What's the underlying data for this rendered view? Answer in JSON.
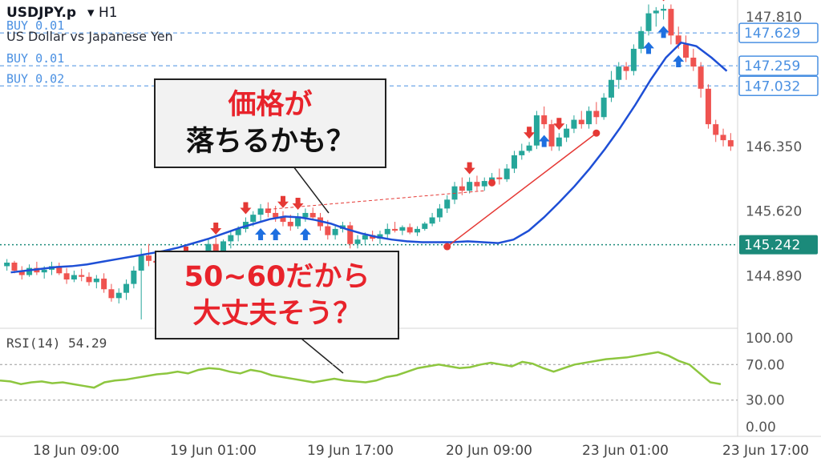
{
  "header": {
    "symbol": "USDJPY.p",
    "timeframe": "H1",
    "description": "US Dollar vs Japanese Yen"
  },
  "callouts": [
    {
      "line1": "価格が",
      "line2": "落ちるかも？"
    },
    {
      "line1": "50~60だから",
      "line2": "大丈夫そう？"
    }
  ],
  "colors": {
    "up": "#26a69a",
    "down": "#ef5350",
    "ma": "#1e4fd6",
    "rsi": "#8dc63f",
    "order": "#4a90e2",
    "trend": "#e53935",
    "bid": "#1b8a7a"
  },
  "chart_data": {
    "type": "candlestick",
    "x_ticks": [
      "18 Jun 09:00",
      "19 Jun 01:00",
      "19 Jun 17:00",
      "20 Jun 09:00",
      "23 Jun 01:00",
      "23 Jun 17:00"
    ],
    "price_ticks": [
      "147.810",
      "146.350",
      "145.620",
      "144.890"
    ],
    "ylim": [
      144.3,
      148.0
    ],
    "order_lines": [
      {
        "label": "BUY 0.01",
        "price": "147.629"
      },
      {
        "label": "BUY 0.01",
        "price": "147.259"
      },
      {
        "label": "BUY 0.02",
        "price": "147.032"
      }
    ],
    "current_price": "145.242",
    "candles": [
      [
        145.0,
        145.08,
        144.95,
        145.04
      ],
      [
        145.04,
        145.06,
        144.92,
        144.95
      ],
      [
        144.95,
        145.0,
        144.85,
        144.9
      ],
      [
        144.9,
        145.02,
        144.88,
        144.98
      ],
      [
        144.98,
        145.05,
        144.9,
        144.93
      ],
      [
        144.93,
        145.0,
        144.86,
        144.96
      ],
      [
        144.96,
        145.05,
        144.9,
        145.0
      ],
      [
        145.0,
        145.04,
        144.9,
        144.92
      ],
      [
        144.92,
        144.98,
        144.8,
        144.85
      ],
      [
        144.85,
        144.95,
        144.82,
        144.9
      ],
      [
        144.9,
        144.97,
        144.83,
        144.88
      ],
      [
        144.88,
        144.93,
        144.78,
        144.82
      ],
      [
        144.82,
        144.9,
        144.75,
        144.86
      ],
      [
        144.86,
        144.92,
        144.7,
        144.74
      ],
      [
        144.74,
        144.8,
        144.6,
        144.64
      ],
      [
        144.64,
        144.75,
        144.58,
        144.7
      ],
      [
        144.7,
        144.85,
        144.62,
        144.8
      ],
      [
        144.8,
        145.0,
        144.75,
        144.95
      ],
      [
        144.95,
        145.2,
        144.4,
        145.12
      ],
      [
        145.12,
        145.25,
        145.0,
        145.06
      ],
      [
        145.06,
        145.15,
        144.95,
        145.04
      ],
      [
        145.04,
        145.12,
        144.96,
        145.08
      ],
      [
        145.08,
        145.15,
        145.0,
        145.05
      ],
      [
        145.05,
        145.1,
        144.9,
        144.95
      ],
      [
        144.95,
        145.05,
        144.88,
        145.0
      ],
      [
        145.0,
        145.1,
        144.95,
        145.05
      ],
      [
        145.05,
        145.15,
        145.0,
        145.12
      ],
      [
        145.12,
        145.3,
        145.08,
        145.25
      ],
      [
        145.25,
        145.32,
        145.1,
        145.15
      ],
      [
        145.15,
        145.3,
        145.12,
        145.28
      ],
      [
        145.28,
        145.4,
        145.2,
        145.35
      ],
      [
        145.35,
        145.45,
        145.28,
        145.42
      ],
      [
        145.42,
        145.55,
        145.38,
        145.5
      ],
      [
        145.5,
        145.62,
        145.45,
        145.58
      ],
      [
        145.58,
        145.7,
        145.5,
        145.65
      ],
      [
        145.65,
        145.72,
        145.55,
        145.6
      ],
      [
        145.6,
        145.68,
        145.5,
        145.55
      ],
      [
        145.55,
        145.62,
        145.45,
        145.5
      ],
      [
        145.5,
        145.58,
        145.4,
        145.45
      ],
      [
        145.45,
        145.6,
        145.42,
        145.55
      ],
      [
        145.55,
        145.65,
        145.5,
        145.6
      ],
      [
        145.6,
        145.66,
        145.52,
        145.55
      ],
      [
        145.55,
        145.6,
        145.4,
        145.45
      ],
      [
        145.45,
        145.52,
        145.3,
        145.35
      ],
      [
        145.35,
        145.45,
        145.3,
        145.42
      ],
      [
        145.42,
        145.5,
        145.38,
        145.46
      ],
      [
        145.46,
        145.5,
        145.2,
        145.25
      ],
      [
        145.25,
        145.35,
        145.2,
        145.3
      ],
      [
        145.3,
        145.38,
        145.25,
        145.35
      ],
      [
        145.35,
        145.4,
        145.28,
        145.31
      ],
      [
        145.31,
        145.4,
        145.25,
        145.36
      ],
      [
        145.36,
        145.48,
        145.32,
        145.42
      ],
      [
        145.42,
        145.5,
        145.38,
        145.4
      ],
      [
        145.4,
        145.46,
        145.35,
        145.44
      ],
      [
        145.44,
        145.48,
        145.36,
        145.38
      ],
      [
        145.38,
        145.45,
        145.34,
        145.42
      ],
      [
        145.42,
        145.5,
        145.4,
        145.48
      ],
      [
        145.48,
        145.6,
        145.45,
        145.55
      ],
      [
        145.55,
        145.7,
        145.5,
        145.65
      ],
      [
        145.65,
        145.8,
        145.6,
        145.75
      ],
      [
        145.75,
        145.95,
        145.7,
        145.9
      ],
      [
        145.9,
        146.0,
        145.8,
        145.85
      ],
      [
        145.85,
        146.0,
        145.82,
        145.95
      ],
      [
        145.95,
        146.02,
        145.85,
        145.9
      ],
      [
        145.9,
        146.0,
        145.85,
        145.96
      ],
      [
        145.96,
        146.05,
        145.9,
        146.0
      ],
      [
        146.0,
        146.1,
        145.92,
        145.98
      ],
      [
        145.98,
        146.15,
        145.95,
        146.1
      ],
      [
        146.1,
        146.3,
        146.05,
        146.25
      ],
      [
        146.25,
        146.38,
        146.2,
        146.3
      ],
      [
        146.3,
        146.4,
        146.28,
        146.36
      ],
      [
        146.36,
        146.75,
        146.32,
        146.7
      ],
      [
        146.7,
        146.8,
        146.55,
        146.6
      ],
      [
        146.6,
        146.65,
        146.3,
        146.35
      ],
      [
        146.35,
        146.5,
        146.3,
        146.45
      ],
      [
        146.45,
        146.6,
        146.4,
        146.55
      ],
      [
        146.55,
        146.7,
        146.5,
        146.65
      ],
      [
        146.65,
        146.75,
        146.55,
        146.6
      ],
      [
        146.6,
        146.8,
        146.55,
        146.75
      ],
      [
        146.75,
        146.85,
        146.6,
        146.68
      ],
      [
        146.68,
        146.95,
        146.65,
        146.9
      ],
      [
        146.9,
        147.2,
        146.85,
        147.1
      ],
      [
        147.1,
        147.3,
        147.0,
        147.25
      ],
      [
        147.25,
        147.3,
        147.1,
        147.2
      ],
      [
        147.2,
        147.5,
        147.15,
        147.45
      ],
      [
        147.45,
        147.7,
        147.4,
        147.65
      ],
      [
        147.65,
        147.95,
        147.6,
        147.85
      ],
      [
        147.85,
        147.92,
        147.7,
        147.88
      ],
      [
        147.88,
        147.95,
        147.78,
        147.9
      ],
      [
        147.9,
        147.95,
        147.5,
        147.6
      ],
      [
        147.6,
        147.7,
        147.45,
        147.5
      ],
      [
        147.5,
        147.6,
        147.3,
        147.35
      ],
      [
        147.35,
        147.45,
        147.2,
        147.25
      ],
      [
        147.25,
        147.3,
        146.9,
        147.0
      ],
      [
        147.0,
        147.05,
        146.55,
        146.6
      ],
      [
        146.6,
        146.65,
        146.4,
        146.48
      ],
      [
        146.48,
        146.55,
        146.35,
        146.42
      ],
      [
        146.42,
        146.5,
        146.3,
        146.35
      ]
    ],
    "ma": [
      144.93,
      144.95,
      144.97,
      144.99,
      145.0,
      145.02,
      145.05,
      145.08,
      145.11,
      145.14,
      145.17,
      145.21,
      145.26,
      145.31,
      145.37,
      145.43,
      145.48,
      145.53,
      145.56,
      145.55,
      145.52,
      145.48,
      145.42,
      145.37,
      145.33,
      145.3,
      145.28,
      145.27,
      145.27,
      145.27,
      145.28,
      145.27,
      145.26,
      145.3,
      145.4,
      145.55,
      145.72,
      145.9,
      146.1,
      146.32,
      146.56,
      146.82,
      147.1,
      147.35,
      147.52,
      147.48,
      147.35,
      147.2
    ],
    "ma_x_start": 0,
    "trendline": [
      [
        59,
        145.22
      ],
      [
        79,
        146.5
      ]
    ],
    "trendline_ext": [
      [
        35,
        145.64
      ],
      [
        64,
        145.85
      ]
    ],
    "rsi": {
      "label": "RSI(14)",
      "value": "54.29",
      "ticks": [
        "100.00",
        "70.00",
        "30.00",
        "0.00"
      ],
      "values": [
        52,
        51,
        48,
        50,
        51,
        49,
        50,
        48,
        46,
        44,
        50,
        52,
        53,
        55,
        57,
        59,
        60,
        62,
        60,
        64,
        66,
        65,
        62,
        60,
        64,
        62,
        58,
        56,
        54,
        52,
        50,
        52,
        54,
        52,
        51,
        50,
        52,
        56,
        58,
        62,
        66,
        68,
        70,
        68,
        66,
        67,
        70,
        72,
        70,
        68,
        73,
        71,
        66,
        62,
        66,
        70,
        72,
        74,
        76,
        77,
        78,
        80,
        82,
        84,
        80,
        74,
        70,
        60,
        50,
        48
      ]
    },
    "buy_arrows_idx": [
      30,
      34,
      36,
      40,
      72,
      86,
      88,
      90
    ],
    "sell_arrows_idx": [
      24,
      28,
      32,
      37,
      39,
      62,
      70,
      74,
      88
    ]
  }
}
